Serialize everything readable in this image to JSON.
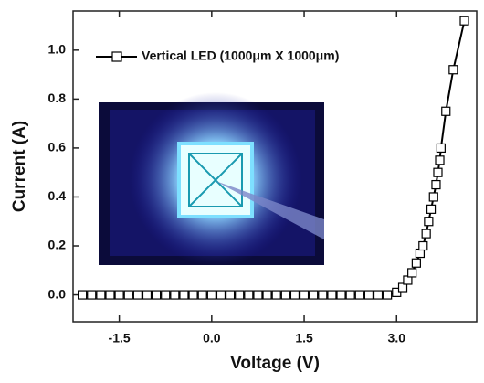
{
  "chart_data": {
    "type": "line",
    "x_label": "Voltage (V)",
    "y_label": "Current (A)",
    "x": [
      -2.1,
      -1.95,
      -1.8,
      -1.65,
      -1.5,
      -1.35,
      -1.2,
      -1.05,
      -0.9,
      -0.75,
      -0.6,
      -0.45,
      -0.3,
      -0.15,
      0,
      0.15,
      0.3,
      0.45,
      0.6,
      0.75,
      0.9,
      1.05,
      1.2,
      1.35,
      1.5,
      1.65,
      1.8,
      1.95,
      2.1,
      2.25,
      2.4,
      2.55,
      2.7,
      2.85,
      3.0,
      3.1,
      3.18,
      3.25,
      3.32,
      3.38,
      3.43,
      3.48,
      3.52,
      3.56,
      3.6,
      3.64,
      3.67,
      3.7,
      3.72,
      3.8,
      3.92,
      4.1
    ],
    "series": [
      {
        "name": "Vertical LED (1000μm X 1000μm)",
        "color": "#000000",
        "values": [
          0,
          0,
          0,
          0,
          0,
          0,
          0,
          0,
          0,
          0,
          0,
          0,
          0,
          0,
          0,
          0,
          0,
          0,
          0,
          0,
          0,
          0,
          0,
          0,
          0,
          0,
          0,
          0,
          0,
          0,
          0,
          0,
          0,
          0,
          0.01,
          0.03,
          0.06,
          0.09,
          0.13,
          0.17,
          0.2,
          0.25,
          0.3,
          0.35,
          0.4,
          0.45,
          0.5,
          0.55,
          0.6,
          0.75,
          0.92,
          1.12
        ]
      }
    ],
    "xlim": [
      -2.25,
      4.3
    ],
    "ylim": [
      -0.11,
      1.16
    ],
    "xticks": [
      -1.5,
      {
        "value": 0,
        "label": "0.0"
      },
      1.5,
      {
        "value": 3,
        "label": "3.0"
      }
    ],
    "yticks": [
      {
        "value": 0,
        "label": "0.0"
      },
      0.2,
      0.4,
      0.6,
      0.8,
      {
        "value": 1,
        "label": "1.0"
      }
    ]
  }
}
